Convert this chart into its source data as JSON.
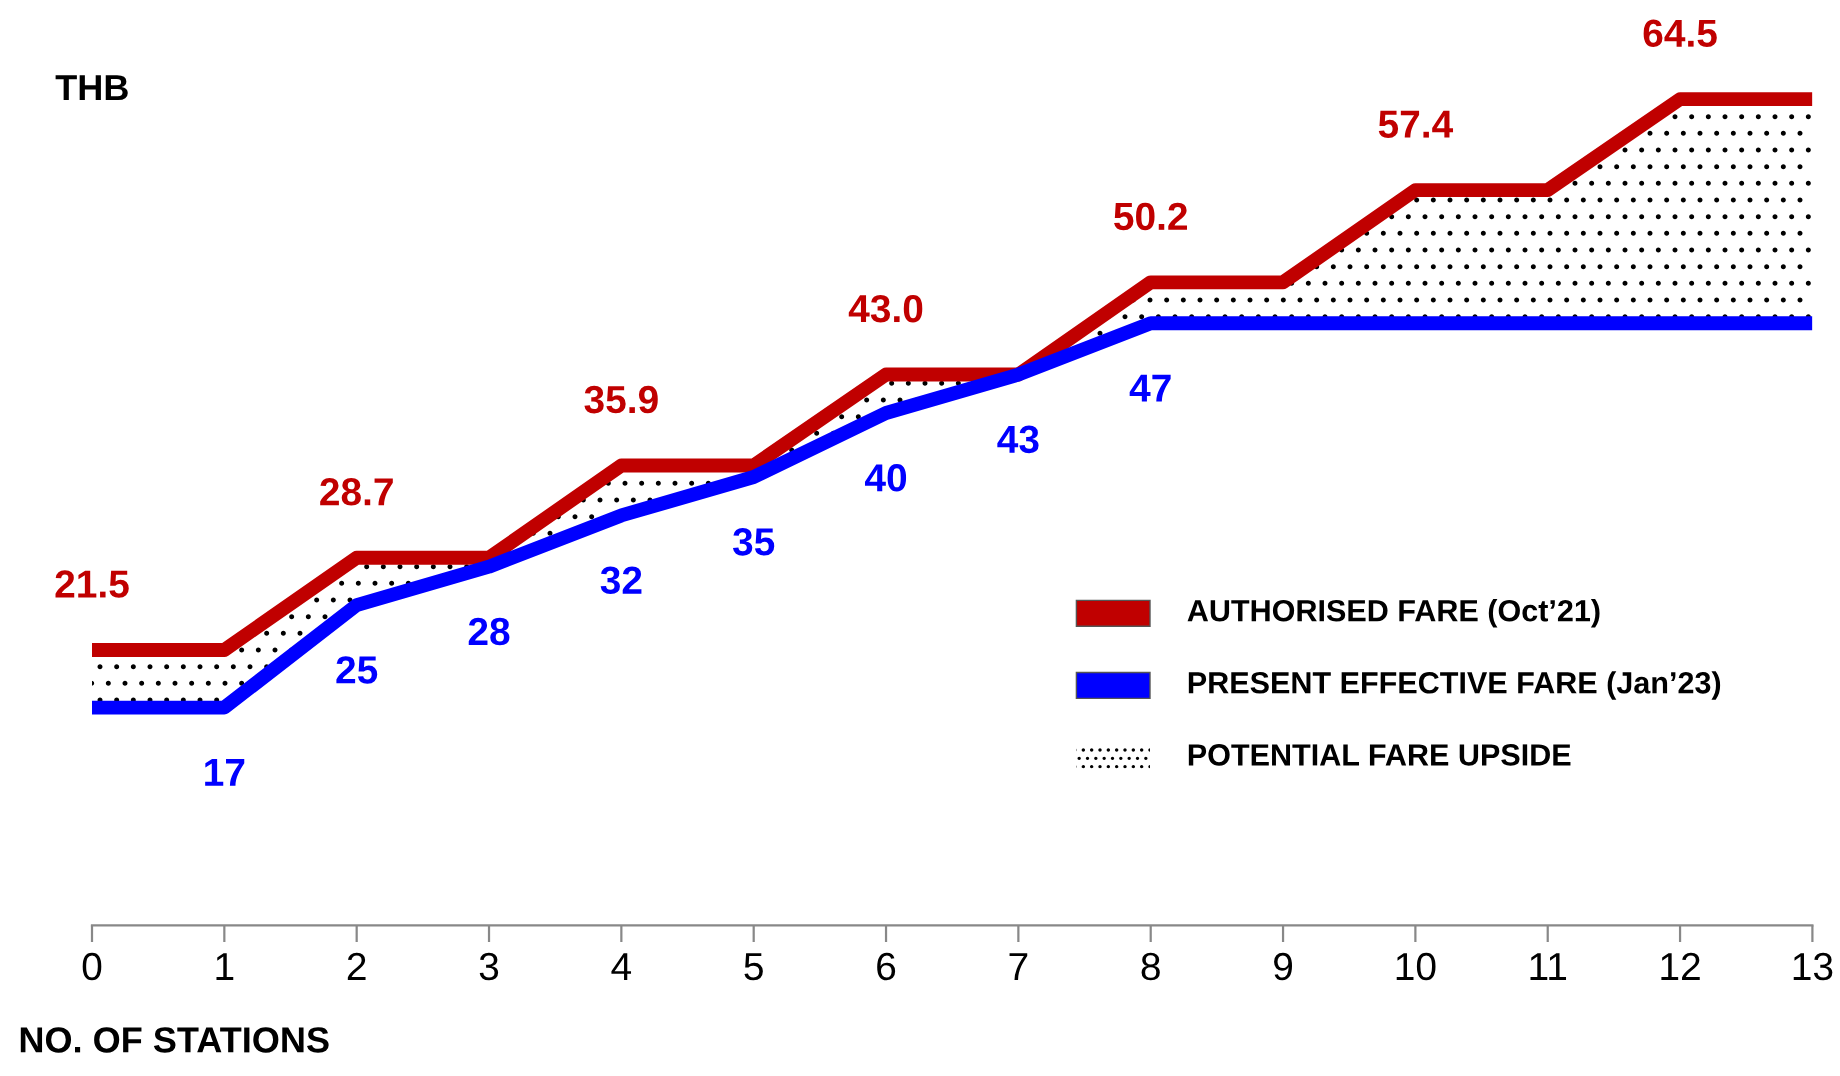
{
  "chart_data": {
    "type": "line",
    "ylabel": "THB",
    "xlabel": "NO. OF STATIONS",
    "x": [
      0,
      1,
      2,
      3,
      4,
      5,
      6,
      7,
      8,
      9,
      10,
      11,
      12,
      13
    ],
    "xlim": [
      0,
      13
    ],
    "xticks": [
      0,
      1,
      2,
      3,
      4,
      5,
      6,
      7,
      8,
      9,
      10,
      11,
      12,
      13
    ],
    "tick_labels": "x",
    "grid": false,
    "legend": "right",
    "marker": "none",
    "line_style": "solid",
    "annotations": [
      "POTENTIAL FARE UPSIDE"
    ],
    "series": [
      {
        "name": "AUTHORISED FARE (Oct’21)",
        "color": "#c00000",
        "values": [
          21.5,
          21.5,
          28.7,
          28.7,
          35.9,
          35.9,
          43.0,
          43.0,
          50.2,
          50.2,
          57.4,
          57.4,
          64.5,
          64.5
        ],
        "value_labels": [
          "21.5",
          null,
          "28.7",
          null,
          "35.9",
          null,
          "43.0",
          null,
          "50.2",
          null,
          "57.4",
          null,
          "64.5",
          null
        ],
        "lower": [
          17,
          17,
          25,
          28,
          32,
          35,
          40,
          43,
          47,
          47,
          47,
          47,
          47,
          47
        ],
        "upper": [
          21.5,
          21.5,
          28.7,
          28.7,
          35.9,
          35.9,
          43.0,
          43.0,
          50.2,
          50.2,
          57.4,
          57.4,
          64.5,
          64.5
        ]
      },
      {
        "name": "PRESENT EFFECTIVE FARE (Jan’23)",
        "color": "#0000ff",
        "values": [
          17,
          17,
          25,
          28,
          32,
          35,
          40,
          43,
          47,
          47,
          47,
          47,
          47,
          47
        ],
        "value_labels": [
          null,
          "17",
          "25",
          "28",
          "32",
          "35",
          "40",
          "43",
          "47",
          null,
          null,
          null,
          null,
          null
        ]
      }
    ]
  }
}
